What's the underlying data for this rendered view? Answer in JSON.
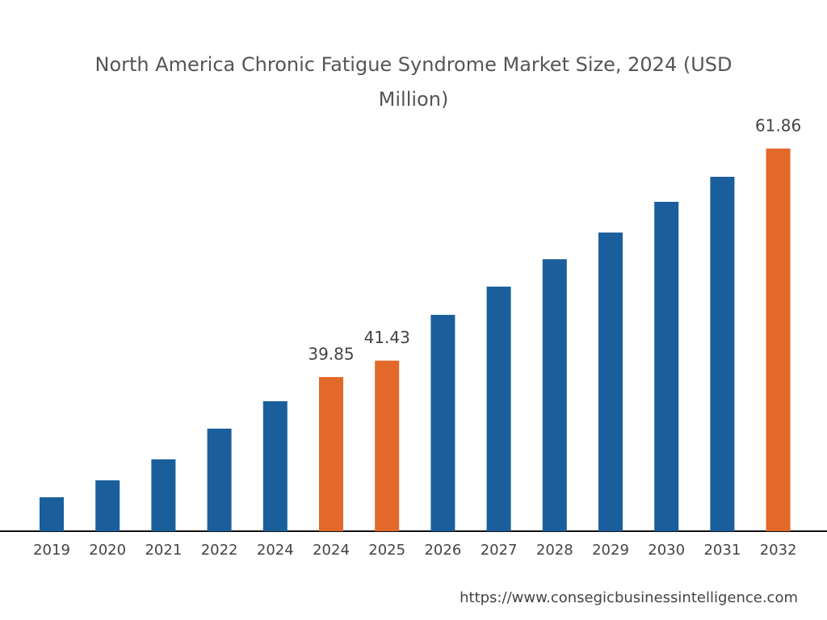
{
  "chart_data": {
    "type": "bar",
    "title": "North America Chronic Fatigue Syndrome Market Size, 2024 (USD Million)",
    "categories": [
      "2019",
      "2020",
      "2021",
      "2022",
      "2024",
      "2024",
      "2025",
      "2026",
      "2027",
      "2028",
      "2029",
      "2030",
      "2031",
      "2032"
    ],
    "values": [
      28.27,
      29.9,
      31.92,
      34.88,
      37.52,
      39.85,
      41.43,
      45.84,
      48.56,
      51.2,
      53.77,
      56.73,
      59.14,
      61.86
    ],
    "value_labels": [
      null,
      null,
      null,
      null,
      null,
      "39.85",
      "41.43",
      null,
      null,
      null,
      null,
      null,
      null,
      "61.86"
    ],
    "colors": [
      "#1a5f9c",
      "#1a5f9c",
      "#1a5f9c",
      "#1a5f9c",
      "#1a5f9c",
      "#e2692a",
      "#e2692a",
      "#1a5f9c",
      "#1a5f9c",
      "#1a5f9c",
      "#1a5f9c",
      "#1a5f9c",
      "#1a5f9c",
      "#e2692a"
    ],
    "ylim": [
      25,
      64
    ],
    "source": "https://www.consegicbusinessintelligence.com"
  }
}
